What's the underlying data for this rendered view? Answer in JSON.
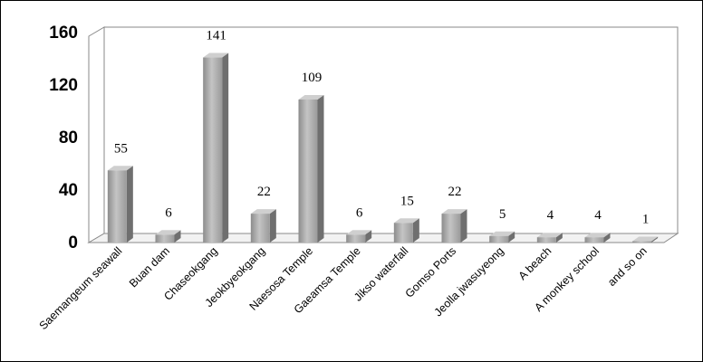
{
  "chart_data": {
    "type": "bar3d",
    "categories": [
      "Saemangeum seawall",
      "Buan dam",
      "Chaseokgang",
      "Jeokbyeokgang",
      "Naesosa Temple",
      "Gaeamsa Temple",
      "Jikso waterfall",
      "Gomso Ports",
      "Jeolla jwasuyeong",
      "A beach",
      "A monkey school",
      "and so on"
    ],
    "values": [
      55,
      6,
      141,
      22,
      109,
      6,
      15,
      22,
      5,
      4,
      4,
      1
    ],
    "color": "#a6a6a6",
    "ylim": [
      0,
      160
    ],
    "yticks": [
      0,
      40,
      80,
      120,
      160
    ],
    "grid": false
  }
}
